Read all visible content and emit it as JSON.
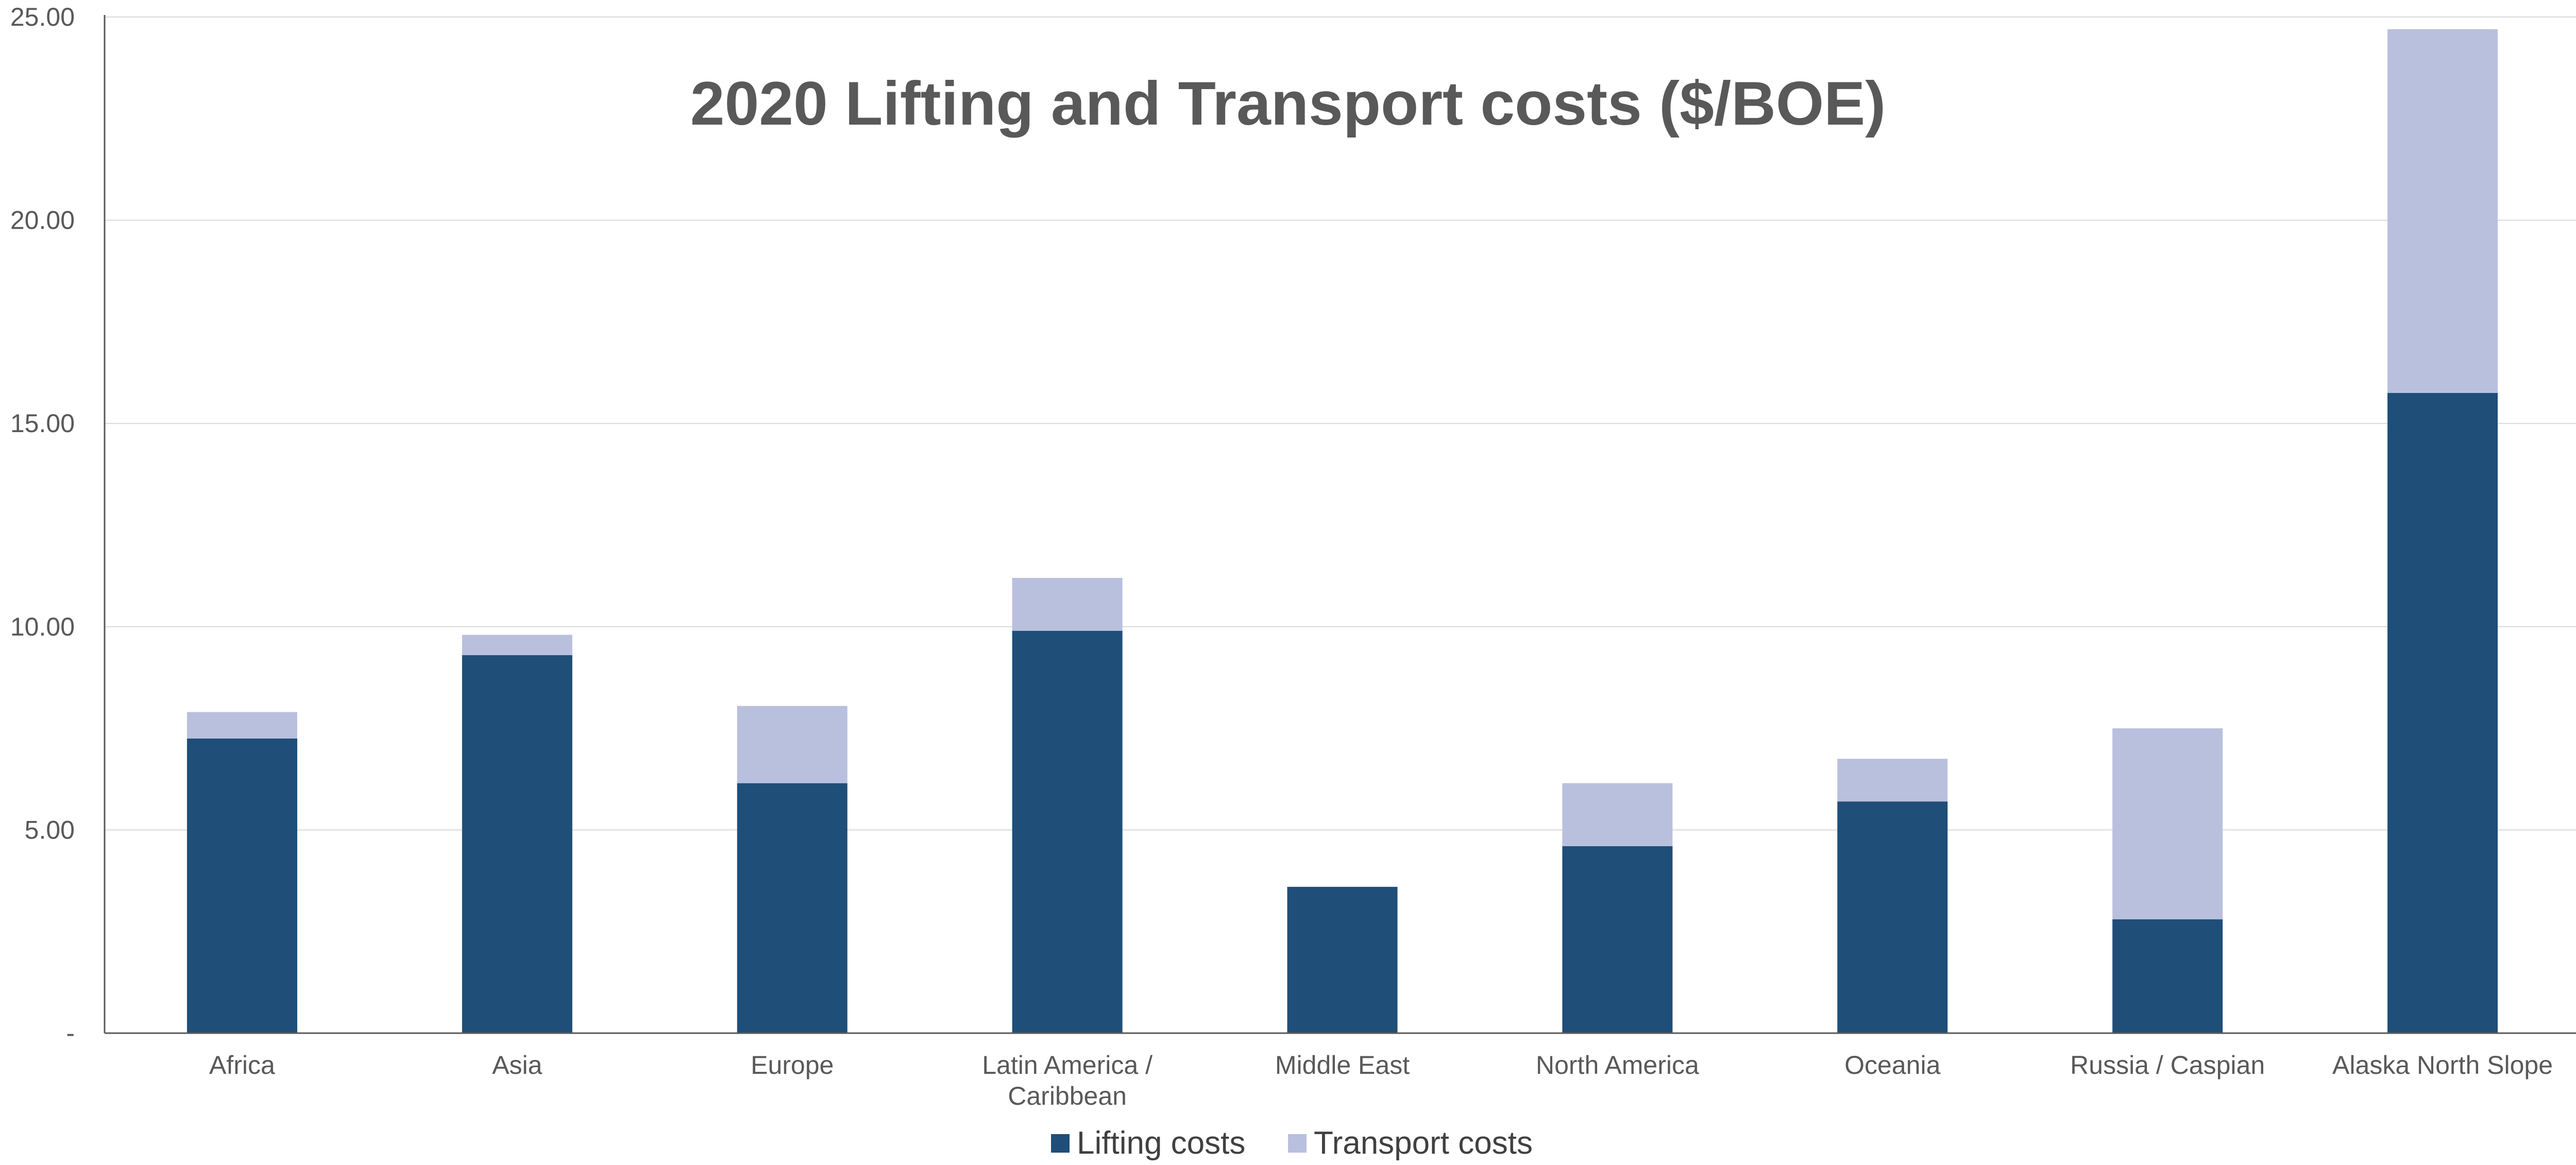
{
  "chart_data": {
    "type": "bar",
    "stacked": true,
    "title": "2020 Lifting and Transport costs ($/BOE)",
    "categories": [
      [
        "Africa"
      ],
      [
        "Asia"
      ],
      [
        "Europe"
      ],
      [
        "Latin America /",
        "Caribbean"
      ],
      [
        "Middle East"
      ],
      [
        "North America"
      ],
      [
        "Oceania"
      ],
      [
        "Russia / Caspian"
      ],
      [
        "Alaska North Slope"
      ]
    ],
    "series": [
      {
        "name": "Lifting costs",
        "color": "#1f4e79",
        "values": [
          7.25,
          9.3,
          6.15,
          9.9,
          3.6,
          4.6,
          5.7,
          2.8,
          15.75
        ]
      },
      {
        "name": "Transport costs",
        "color": "#b9c0de",
        "values": [
          0.65,
          0.5,
          1.9,
          1.3,
          0.0,
          1.55,
          1.05,
          4.7,
          8.95
        ]
      }
    ],
    "ylim": [
      0,
      25
    ],
    "yticks": [
      0,
      5,
      10,
      15,
      20,
      25
    ],
    "ytick_labels": [
      "-",
      "5.00",
      "10.00",
      "15.00",
      "20.00",
      "25.00"
    ],
    "grid": true,
    "legend_position": "bottom"
  }
}
